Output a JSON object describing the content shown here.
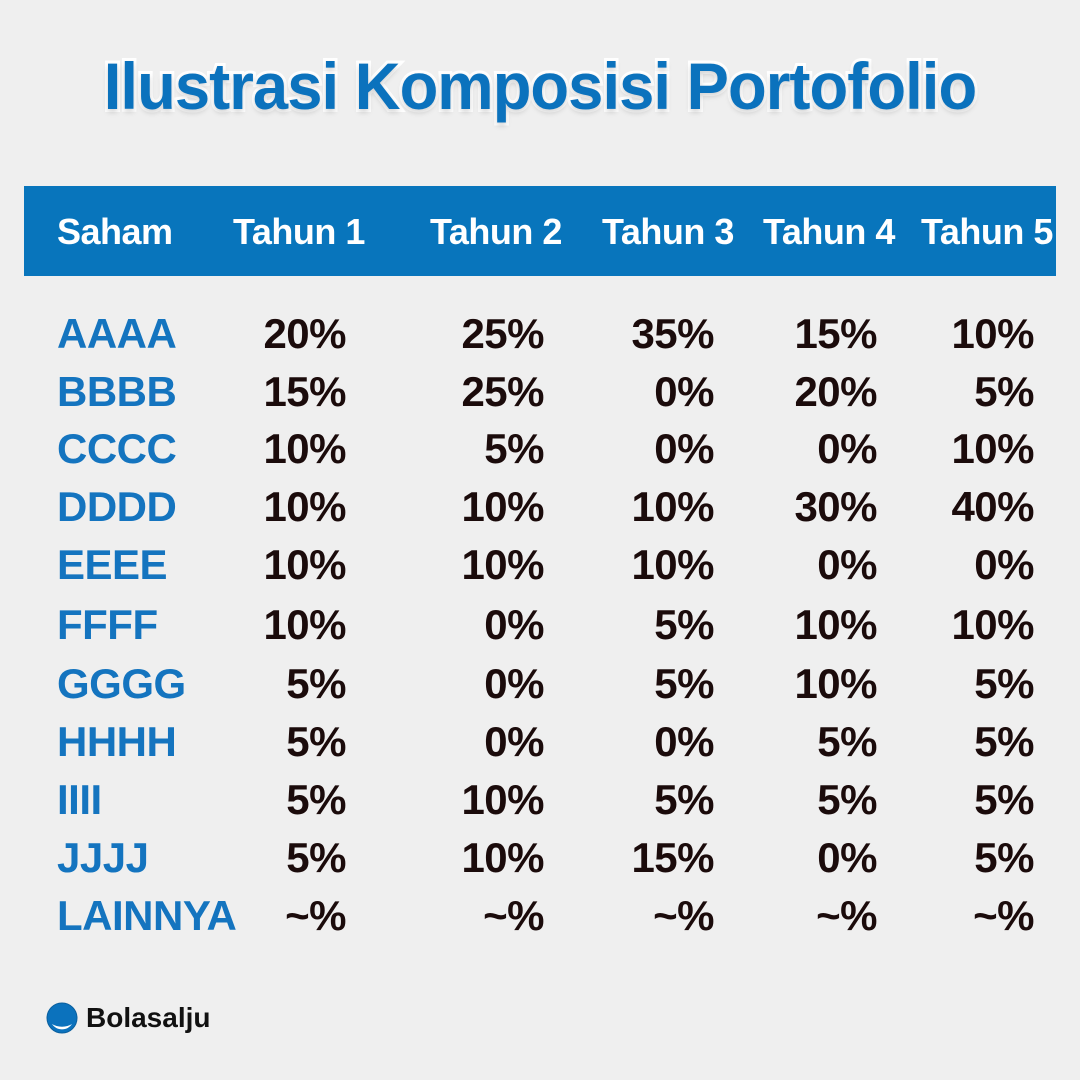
{
  "title": "Ilustrasi Komposisi Portofolio",
  "brand": {
    "name": "Bolasalju",
    "icon": "snowball-logo-icon"
  },
  "colors": {
    "accent": "#0875bc",
    "code": "#1474bf",
    "value": "#1b0b0b",
    "background": "#efefef"
  },
  "chart_data": {
    "type": "table",
    "title": "Ilustrasi Komposisi Portofolio",
    "columns": [
      "Saham",
      "Tahun 1",
      "Tahun 2",
      "Tahun 3",
      "Tahun 4",
      "Tahun 5"
    ],
    "rows": [
      {
        "saham": "AAAA",
        "values": [
          "20%",
          "25%",
          "35%",
          "15%",
          "10%"
        ]
      },
      {
        "saham": "BBBB",
        "values": [
          "15%",
          "25%",
          "0%",
          "20%",
          "5%"
        ]
      },
      {
        "saham": "CCCC",
        "values": [
          "10%",
          "5%",
          "0%",
          "0%",
          "10%"
        ]
      },
      {
        "saham": "DDDD",
        "values": [
          "10%",
          "10%",
          "10%",
          "30%",
          "40%"
        ]
      },
      {
        "saham": "EEEE",
        "values": [
          "10%",
          "10%",
          "10%",
          "0%",
          "0%"
        ]
      },
      {
        "saham": "FFFF",
        "values": [
          "10%",
          "0%",
          "5%",
          "10%",
          "10%"
        ]
      },
      {
        "saham": "GGGG",
        "values": [
          "5%",
          "0%",
          "5%",
          "10%",
          "5%"
        ]
      },
      {
        "saham": "HHHH",
        "values": [
          "5%",
          "0%",
          "0%",
          "5%",
          "5%"
        ]
      },
      {
        "saham": "IIII",
        "values": [
          "5%",
          "10%",
          "5%",
          "5%",
          "5%"
        ]
      },
      {
        "saham": "JJJJ",
        "values": [
          "5%",
          "10%",
          "15%",
          "0%",
          "5%"
        ]
      },
      {
        "saham": "LAINNYA",
        "values": [
          "~%",
          "~%",
          "~%",
          "~%",
          "~%"
        ]
      }
    ]
  }
}
